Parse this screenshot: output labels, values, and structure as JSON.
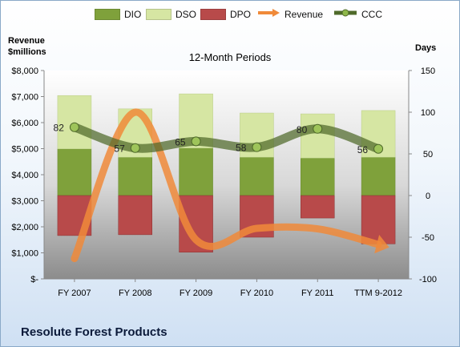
{
  "chart_data": {
    "type": "bar",
    "title": "12-Month Periods",
    "company": "Resolute Forest Products",
    "left_axis_label_line1": "Revenue",
    "left_axis_label_line2": "$millions",
    "right_axis_label": "Days",
    "categories": [
      "FY 2007",
      "FY 2008",
      "FY 2009",
      "FY 2010",
      "FY 2011",
      "TTM 9-2012"
    ],
    "left_ticks": [
      "$8,000",
      "$7,000",
      "$6,000",
      "$5,000",
      "$4,000",
      "$3,000",
      "$2,000",
      "$1,000",
      "$-"
    ],
    "right_ticks": [
      "150",
      "100",
      "50",
      "0",
      "-50",
      "-100"
    ],
    "left_range": [
      0,
      8000
    ],
    "right_range": [
      -100,
      150
    ],
    "legend": [
      {
        "key": "DIO",
        "label": "DIO",
        "color": "#7fa13b"
      },
      {
        "key": "DSO",
        "label": "DSO",
        "color": "#d6e6a3"
      },
      {
        "key": "DPO",
        "label": "DPO",
        "color": "#b84a4a"
      },
      {
        "key": "Revenue",
        "label": "Revenue",
        "color": "#f08a3a"
      },
      {
        "key": "CCC",
        "label": "CCC",
        "color": "#4f6a2a"
      }
    ],
    "series": [
      {
        "name": "DIO",
        "values": [
          56,
          46,
          57,
          46,
          45,
          46
        ]
      },
      {
        "name": "DSO",
        "values": [
          64,
          58,
          65,
          53,
          53,
          56
        ]
      },
      {
        "name": "DPO",
        "values": [
          -48,
          -47,
          -68,
          -50,
          -27,
          -58
        ]
      },
      {
        "name": "Revenue",
        "values": [
          780,
          6400,
          1500,
          1940,
          1920,
          1320
        ]
      },
      {
        "name": "CCC",
        "values": [
          82,
          57,
          65,
          58,
          80,
          56
        ]
      }
    ],
    "ccc_labels": [
      "82",
      "57",
      "65",
      "58",
      "80",
      "56"
    ],
    "grid": false,
    "legend_position": "top"
  }
}
